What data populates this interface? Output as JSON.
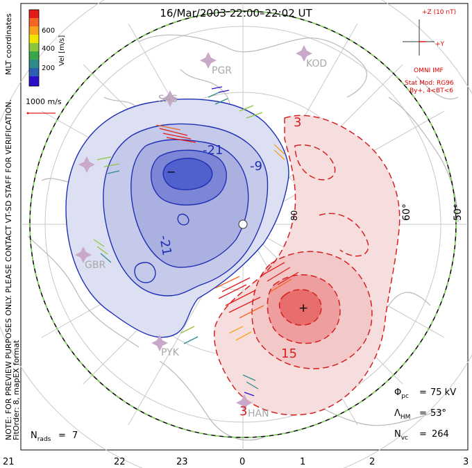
{
  "title": "16/Mar/2003 22:00–22:02 UT",
  "side_note": {
    "line1": "NOTE: FOR PREVIEW PURPOSES ONLY. PLEASE CONTACT VT-SD STAFF FOR VERIFICATION.",
    "line2": "FitOrder: 8, mapEX format"
  },
  "coords_label": "MLT coordinates",
  "colorbar": {
    "label": "Vel [m/s]",
    "ticks": [
      "600",
      "400",
      "200"
    ],
    "colors": [
      "#2a10c9",
      "#2c5fb2",
      "#2e8b8a",
      "#3aa64a",
      "#8cc63f",
      "#f2e600",
      "#f7a21b",
      "#f26522",
      "#e31b1b"
    ]
  },
  "ref_vector": "1000 m/s",
  "imf": {
    "scale": "+Z (10 nT)",
    "y_axis": "+Y",
    "source": "OMNI IMF",
    "model": "Stat Mod: RG96",
    "condition": "By+, 4<BT<6"
  },
  "stations": [
    "PGR",
    "KOD",
    "SAS",
    "GBR",
    "PYK",
    "HAN"
  ],
  "lat_labels": [
    "60°",
    "50°",
    "80"
  ],
  "contour_labels": [
    "-21",
    "-9",
    "-21",
    "3",
    "15",
    "3"
  ],
  "extrema": {
    "min": "−",
    "max": "+"
  },
  "stats": {
    "phi_pc": "75 kV",
    "lambda_hm": "53°",
    "n_vc": "264",
    "n_rads": "7"
  },
  "mlt_ticks": [
    "21",
    "22",
    "23",
    "0",
    "1",
    "2",
    "3"
  ],
  "colors": {
    "negative": "#1f2fb4",
    "positive": "#d42020",
    "hmb": "#000000",
    "hmb_dash": "#7ed957"
  }
}
